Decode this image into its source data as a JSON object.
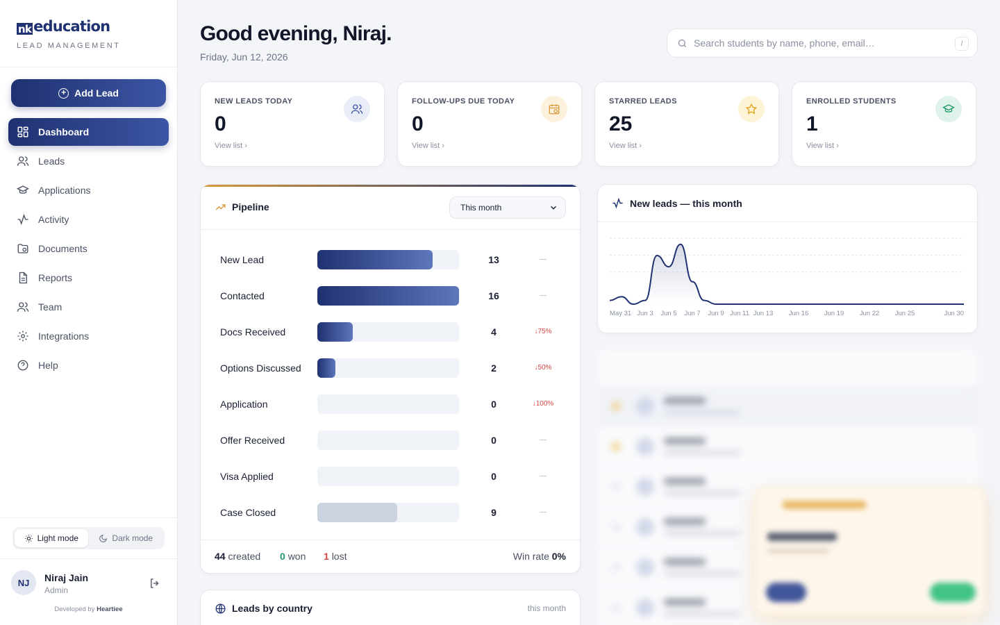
{
  "brand": {
    "logo_mark": "nk",
    "logo_text": "education",
    "subtitle": "LEAD MANAGEMENT"
  },
  "sidebar": {
    "add_lead": "Add Lead",
    "items": [
      {
        "label": "Dashboard",
        "icon": "dashboard-icon",
        "active": true
      },
      {
        "label": "Leads",
        "icon": "users-icon"
      },
      {
        "label": "Applications",
        "icon": "graduation-cap-icon"
      },
      {
        "label": "Activity",
        "icon": "activity-icon"
      },
      {
        "label": "Documents",
        "icon": "folder-icon"
      },
      {
        "label": "Reports",
        "icon": "report-icon"
      },
      {
        "label": "Team",
        "icon": "team-icon"
      },
      {
        "label": "Integrations",
        "icon": "gear-icon"
      },
      {
        "label": "Help",
        "icon": "help-icon"
      }
    ],
    "light_mode": "Light mode",
    "dark_mode": "Dark mode",
    "user": {
      "initials": "NJ",
      "name": "Niraj Jain",
      "role": "Admin"
    },
    "developed_by": "Developed by",
    "developer": "Heartiee"
  },
  "header": {
    "greeting": "Good evening, Niraj.",
    "date": "Friday, Jun 12, 2026",
    "search_placeholder": "Search students by name, phone, email…",
    "search_shortcut": "/"
  },
  "stats": [
    {
      "label": "NEW LEADS TODAY",
      "value": "0",
      "link": "View list",
      "icon": "users-icon",
      "color": "#3d55a5"
    },
    {
      "label": "FOLLOW-UPS DUE TODAY",
      "value": "0",
      "link": "View list",
      "icon": "calendar-clock-icon",
      "color": "#d99a3b"
    },
    {
      "label": "STARRED LEADS",
      "value": "25",
      "link": "View list",
      "icon": "star-icon",
      "color": "#e0a21a"
    },
    {
      "label": "ENROLLED STUDENTS",
      "value": "1",
      "link": "View list",
      "icon": "graduation-cap-icon",
      "color": "#1f9a6a"
    }
  ],
  "pipeline": {
    "title": "Pipeline",
    "period": "This month",
    "max": 16,
    "stages": [
      {
        "label": "New Lead",
        "count": 13,
        "delta": "—",
        "down": false,
        "closed": false
      },
      {
        "label": "Contacted",
        "count": 16,
        "delta": "—",
        "down": false,
        "closed": false
      },
      {
        "label": "Docs Received",
        "count": 4,
        "delta": "↓75%",
        "down": true,
        "closed": false
      },
      {
        "label": "Options Discussed",
        "count": 2,
        "delta": "↓50%",
        "down": true,
        "closed": false
      },
      {
        "label": "Application",
        "count": 0,
        "delta": "↓100%",
        "down": true,
        "closed": false
      },
      {
        "label": "Offer Received",
        "count": 0,
        "delta": "—",
        "down": false,
        "closed": false
      },
      {
        "label": "Visa Applied",
        "count": 0,
        "delta": "—",
        "down": false,
        "closed": false
      },
      {
        "label": "Case Closed",
        "count": 9,
        "delta": "—",
        "down": false,
        "closed": true
      }
    ],
    "footer": {
      "created_count": "44",
      "created_label": "created",
      "won_count": "0",
      "won_label": "won",
      "lost_count": "1",
      "lost_label": "lost",
      "win_rate_label": "Win rate",
      "win_rate": "0%"
    }
  },
  "country": {
    "title": "Leads by country",
    "period": "this month"
  },
  "chart_data": {
    "type": "area",
    "title": "New leads — this month",
    "x": [
      "May 31",
      "Jun 1",
      "Jun 2",
      "Jun 3",
      "Jun 4",
      "Jun 5",
      "Jun 6",
      "Jun 7",
      "Jun 8",
      "Jun 9",
      "Jun 10",
      "Jun 11",
      "Jun 12",
      "Jun 13",
      "Jun 14",
      "Jun 15",
      "Jun 16",
      "Jun 17",
      "Jun 18",
      "Jun 19",
      "Jun 20",
      "Jun 21",
      "Jun 22",
      "Jun 23",
      "Jun 24",
      "Jun 25",
      "Jun 26",
      "Jun 27",
      "Jun 28",
      "Jun 29",
      "Jun 30"
    ],
    "values": [
      1,
      2,
      0,
      1,
      13,
      10,
      16,
      6,
      1,
      0,
      0,
      0,
      0,
      0,
      0,
      0,
      0,
      0,
      0,
      0,
      0,
      0,
      0,
      0,
      0,
      0,
      0,
      0,
      0,
      0,
      0
    ],
    "tick_labels": [
      "May 31",
      "Jun 3",
      "Jun 5",
      "Jun 7",
      "Jun 9",
      "Jun 11",
      "Jun 13",
      "Jun 16",
      "Jun 19",
      "Jun 22",
      "Jun 25",
      "Jun 30"
    ],
    "ylim": [
      0,
      18
    ],
    "grid": true,
    "color": "#1f3170"
  }
}
